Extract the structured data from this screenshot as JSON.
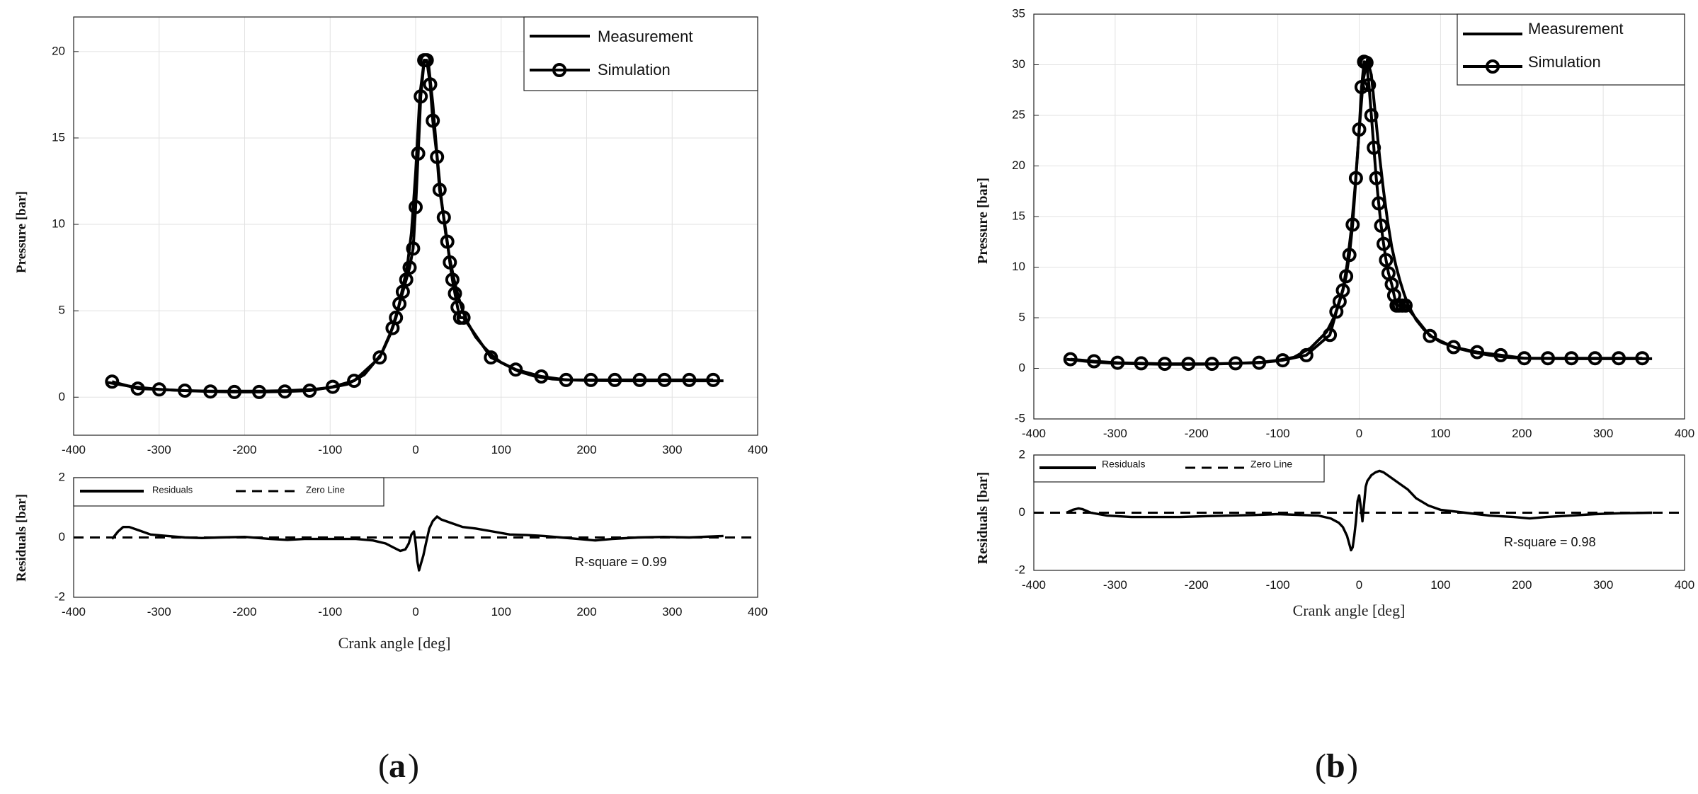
{
  "chart_data": [
    {
      "id": "a",
      "type": "line",
      "panel_label": "a",
      "pressure": {
        "ylabel": "Pressure [bar]",
        "xlim": [
          -400,
          400
        ],
        "ylim": [
          -2.2,
          22
        ],
        "xticks": [
          -400,
          -300,
          -200,
          -100,
          0,
          100,
          200,
          300,
          400
        ],
        "yticks": [
          0,
          5,
          10,
          15,
          20
        ],
        "grid": true,
        "legend": {
          "position": "top-right",
          "entries": [
            "Measurement",
            "Simulation"
          ]
        },
        "series": [
          {
            "name": "Measurement",
            "x": [
              -360,
              -330,
              -300,
              -270,
              -240,
              -210,
              -180,
              -150,
              -120,
              -100,
              -80,
              -60,
              -40,
              -30,
              -20,
              -10,
              -5,
              0,
              5,
              10,
              15,
              20,
              25,
              30,
              35,
              40,
              45,
              50,
              55,
              60,
              70,
              80,
              90,
              100,
              120,
              140,
              160,
              180,
              200,
              250,
              300,
              360
            ],
            "y": [
              0.85,
              0.6,
              0.45,
              0.38,
              0.35,
              0.35,
              0.35,
              0.38,
              0.45,
              0.55,
              0.75,
              1.3,
              2.5,
              3.6,
              5.2,
              7.5,
              9.5,
              13.0,
              17.5,
              19.5,
              19.3,
              17.0,
              14.0,
              11.5,
              9.5,
              8.0,
              6.8,
              5.8,
              5.0,
              4.4,
              3.5,
              2.9,
              2.4,
              2.0,
              1.5,
              1.2,
              1.05,
              1.0,
              0.97,
              0.95,
              0.95,
              0.95
            ]
          },
          {
            "name": "Simulation",
            "markers": true,
            "x": [
              -355,
              -325,
              -300,
              -270,
              -240,
              -212,
              -183,
              -153,
              -124,
              -97,
              -72,
              -42,
              -27,
              -23,
              -19,
              -15,
              -11,
              -7,
              -3,
              0,
              3,
              6,
              10,
              13,
              17,
              20,
              25,
              28,
              33,
              37,
              40,
              43,
              46,
              49,
              52,
              56,
              88,
              117,
              147,
              176,
              205,
              233,
              262,
              291,
              320,
              348
            ],
            "y": [
              0.9,
              0.5,
              0.45,
              0.38,
              0.33,
              0.3,
              0.3,
              0.33,
              0.38,
              0.6,
              0.95,
              2.3,
              4.0,
              4.6,
              5.4,
              6.1,
              6.8,
              7.5,
              8.6,
              11.0,
              14.1,
              17.4,
              19.5,
              19.5,
              18.1,
              16.0,
              13.9,
              12.0,
              10.4,
              9.0,
              7.8,
              6.8,
              6.0,
              5.2,
              4.6,
              4.6,
              2.3,
              1.6,
              1.2,
              1.0,
              1.0,
              1.0,
              1.0,
              1.0,
              1.0,
              1.0
            ]
          }
        ]
      },
      "residuals": {
        "ylabel": "Residuals [bar]",
        "xlabel": "Crank angle [deg]",
        "xlim": [
          -400,
          400
        ],
        "ylim": [
          -2,
          2
        ],
        "xticks": [
          -400,
          -300,
          -200,
          -100,
          0,
          100,
          200,
          300,
          400
        ],
        "yticks": [
          -2,
          0,
          2
        ],
        "legend": {
          "position": "top-left",
          "entries": [
            "Residuals",
            "Zero Line"
          ]
        },
        "annotation": "R-square = 0.99",
        "series": [
          {
            "name": "Residuals",
            "x": [
              -355,
              -348,
              -342,
              -335,
              -325,
              -310,
              -290,
              -270,
              -250,
              -230,
              -200,
              -170,
              -150,
              -130,
              -110,
              -90,
              -70,
              -50,
              -35,
              -25,
              -18,
              -12,
              -8,
              -5,
              -2,
              0,
              2,
              4,
              6,
              9,
              12,
              16,
              20,
              25,
              30,
              40,
              55,
              70,
              90,
              110,
              130,
              150,
              170,
              190,
              210,
              230,
              260,
              290,
              320,
              360
            ],
            "y": [
              -0.05,
              0.2,
              0.35,
              0.35,
              0.25,
              0.1,
              0.05,
              0.0,
              -0.02,
              0.0,
              0.02,
              -0.05,
              -0.08,
              -0.05,
              -0.05,
              -0.05,
              -0.05,
              -0.1,
              -0.2,
              -0.35,
              -0.45,
              -0.4,
              -0.2,
              0.1,
              0.2,
              -0.2,
              -0.8,
              -1.1,
              -0.9,
              -0.6,
              -0.2,
              0.3,
              0.55,
              0.7,
              0.6,
              0.5,
              0.35,
              0.3,
              0.2,
              0.1,
              0.08,
              0.05,
              0.0,
              -0.05,
              -0.1,
              -0.05,
              0.0,
              0.02,
              0.0,
              0.05
            ]
          },
          {
            "name": "Zero Line",
            "x": [
              -400,
              400
            ],
            "y": [
              0,
              0
            ]
          }
        ]
      }
    },
    {
      "id": "b",
      "type": "line",
      "panel_label": "b",
      "pressure": {
        "ylabel": "Pressure [bar]",
        "xlim": [
          -400,
          400
        ],
        "ylim": [
          -5,
          35
        ],
        "xticks": [
          -400,
          -300,
          -200,
          -100,
          0,
          100,
          200,
          300,
          400
        ],
        "yticks": [
          -5,
          0,
          5,
          10,
          15,
          20,
          25,
          30,
          35
        ],
        "grid": true,
        "legend": {
          "position": "top-right",
          "entries": [
            "Measurement",
            "Simulation"
          ]
        },
        "series": [
          {
            "name": "Measurement",
            "x": [
              -360,
              -330,
              -300,
              -270,
              -240,
              -210,
              -180,
              -150,
              -120,
              -100,
              -80,
              -60,
              -40,
              -30,
              -20,
              -15,
              -10,
              -5,
              0,
              5,
              10,
              15,
              20,
              25,
              30,
              35,
              40,
              45,
              50,
              55,
              60,
              70,
              80,
              90,
              100,
              120,
              140,
              160,
              180,
              200,
              250,
              300,
              360
            ],
            "y": [
              0.9,
              0.65,
              0.5,
              0.45,
              0.4,
              0.4,
              0.42,
              0.5,
              0.6,
              0.8,
              1.1,
              2.0,
              3.6,
              5.2,
              7.8,
              10.2,
              13.5,
              18.0,
              23.5,
              28.5,
              30.5,
              29.0,
              25.0,
              21.0,
              17.5,
              14.5,
              12.0,
              10.2,
              8.7,
              7.4,
              6.3,
              4.8,
              3.8,
              3.1,
              2.6,
              2.0,
              1.6,
              1.3,
              1.1,
              1.0,
              0.95,
              0.95,
              0.95
            ]
          },
          {
            "name": "Simulation",
            "markers": true,
            "x": [
              -355,
              -326,
              -297,
              -268,
              -239,
              -210,
              -181,
              -152,
              -123,
              -94,
              -65,
              -36,
              -28,
              -24,
              -20,
              -16,
              -12,
              -8,
              -4,
              0,
              3,
              6,
              9,
              12,
              15,
              18,
              21,
              24,
              27,
              30,
              33,
              36,
              40,
              43,
              46,
              49,
              53,
              57,
              87,
              116,
              145,
              174,
              203,
              232,
              261,
              290,
              319,
              348
            ],
            "y": [
              0.9,
              0.7,
              0.55,
              0.5,
              0.45,
              0.45,
              0.45,
              0.5,
              0.55,
              0.8,
              1.3,
              3.3,
              5.6,
              6.6,
              7.7,
              9.1,
              11.2,
              14.2,
              18.8,
              23.6,
              27.8,
              30.3,
              30.2,
              28.0,
              25.0,
              21.8,
              18.8,
              16.3,
              14.1,
              12.3,
              10.7,
              9.4,
              8.3,
              7.2,
              6.2,
              6.2,
              6.2,
              6.2,
              3.2,
              2.1,
              1.6,
              1.3,
              1.0,
              1.0,
              1.0,
              1.0,
              1.0,
              1.0
            ]
          }
        ]
      },
      "residuals": {
        "ylabel": "Residuals [bar]",
        "xlabel": "Crank angle [deg]",
        "xlim": [
          -400,
          400
        ],
        "ylim": [
          -2,
          2
        ],
        "xticks": [
          -400,
          -300,
          -200,
          -100,
          0,
          100,
          200,
          300,
          400
        ],
        "yticks": [
          -2,
          0,
          2
        ],
        "legend": {
          "position": "top-left",
          "entries": [
            "Residuals",
            "Zero Line"
          ]
        },
        "annotation": "R-square = 0.98",
        "series": [
          {
            "name": "Residuals",
            "x": [
              -360,
              -352,
              -345,
              -340,
              -330,
              -310,
              -280,
              -250,
              -220,
              -190,
              -160,
              -130,
              -100,
              -70,
              -50,
              -35,
              -25,
              -20,
              -15,
              -12,
              -10,
              -8,
              -6,
              -4,
              -2,
              0,
              2,
              4,
              6,
              8,
              10,
              15,
              20,
              25,
              30,
              40,
              50,
              60,
              70,
              85,
              100,
              130,
              160,
              190,
              210,
              230,
              260,
              290,
              320,
              360
            ],
            "y": [
              0.0,
              0.1,
              0.15,
              0.12,
              0.0,
              -0.1,
              -0.15,
              -0.15,
              -0.15,
              -0.12,
              -0.1,
              -0.08,
              -0.05,
              -0.08,
              -0.1,
              -0.2,
              -0.35,
              -0.5,
              -0.8,
              -1.1,
              -1.3,
              -1.2,
              -0.8,
              -0.3,
              0.4,
              0.6,
              0.2,
              -0.3,
              0.3,
              0.9,
              1.1,
              1.3,
              1.4,
              1.45,
              1.4,
              1.2,
              1.0,
              0.8,
              0.5,
              0.25,
              0.1,
              0.0,
              -0.1,
              -0.15,
              -0.2,
              -0.15,
              -0.1,
              -0.05,
              -0.02,
              0.0
            ]
          },
          {
            "name": "Zero Line",
            "x": [
              -400,
              400
            ],
            "y": [
              0,
              0
            ]
          }
        ]
      }
    }
  ]
}
